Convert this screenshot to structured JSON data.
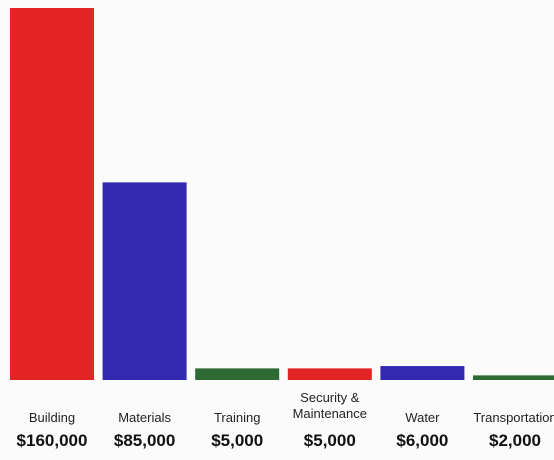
{
  "chart_data": {
    "type": "bar",
    "title": "",
    "xlabel": "",
    "ylabel": "",
    "ylim": [
      0,
      160000
    ],
    "grid": false,
    "legend": "none",
    "categories": [
      [
        "Building"
      ],
      [
        "Materials"
      ],
      [
        "Training"
      ],
      [
        "Security &",
        "Maintenance"
      ],
      [
        "Water"
      ],
      [
        "Transportation"
      ]
    ],
    "value_labels": [
      "$160,000",
      "$85,000",
      "$5,000",
      "$5,000",
      "$6,000",
      "$2,000"
    ],
    "values": [
      160000,
      85000,
      5000,
      5000,
      6000,
      2000
    ],
    "colors": [
      "#e22424",
      "#3329b0",
      "#2e6b34",
      "#e22424",
      "#3329b0",
      "#2e6b34"
    ]
  }
}
